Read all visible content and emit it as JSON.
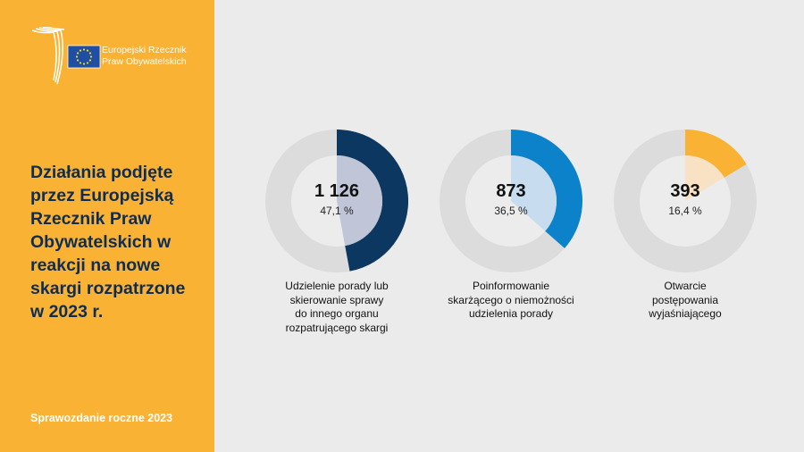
{
  "brand": {
    "line1": "Europejski Rzecznik",
    "line2": "Praw Obywatelskich"
  },
  "title": [
    "Działania podjęte",
    "przez Europejską",
    "Rzecznik Praw",
    "Obywatelskich w",
    "reakcji na nowe",
    "skargi rozpatrzone",
    "w 2023 r."
  ],
  "footer": "Sprawozdanie roczne 2023",
  "colors": {
    "sidebar": "#f9b233",
    "background": "#ebebeb",
    "track": "#dcdcdc",
    "inner": "#ececec"
  },
  "chart_data": {
    "type": "pie",
    "variant": "donut-set",
    "items": [
      {
        "value_text": "1 126",
        "percent_text": "47,1 %",
        "value": 1126,
        "percent": 47.1,
        "label": [
          "Udzielenie porady lub",
          "skierowanie sprawy",
          "do innego organu",
          "rozpatrującego skargi"
        ],
        "color": "#0c3761",
        "inner_color": "#c0c5d8"
      },
      {
        "value_text": "873",
        "percent_text": "36,5 %",
        "value": 873,
        "percent": 36.5,
        "label": [
          "Poinformowanie",
          "skarżącego o niemożności",
          "udzielenia porady"
        ],
        "color": "#0b82c9",
        "inner_color": "#c8dcef"
      },
      {
        "value_text": "393",
        "percent_text": "16,4 %",
        "value": 393,
        "percent": 16.4,
        "label": [
          "Otwarcie",
          "postępowania",
          "wyjaśniającego"
        ],
        "color": "#f9b233",
        "inner_color": "#f8e2c3"
      }
    ]
  }
}
